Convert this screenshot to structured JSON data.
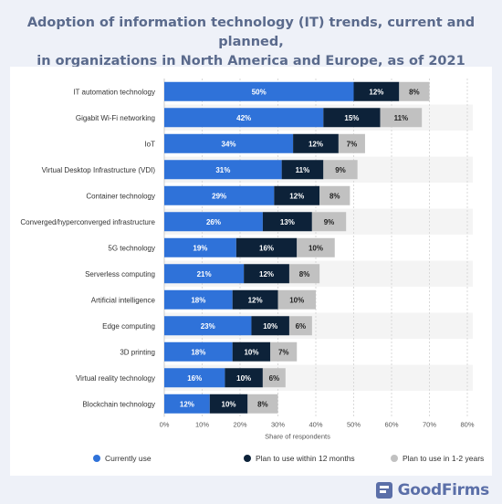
{
  "header": {
    "title_line1": "Adoption of information technology (IT) trends, current and planned,",
    "title_line2": "in organizations in North America and Europe, as of 2021"
  },
  "brand": {
    "logo_text": "GoodFirms",
    "logo_icon": "goodfirms-logo-icon"
  },
  "chart_data": {
    "type": "bar",
    "orientation": "horizontal",
    "stacked": true,
    "categories": [
      "IT automation technology",
      "Gigabit Wi-Fi networking",
      "IoT",
      "Virtual Desktop Infrastructure (VDI)",
      "Container technology",
      "Converged/hyperconverged infrastructure",
      "5G technology",
      "Serverless computing",
      "Artificial intelligence",
      "Edge computing",
      "3D printing",
      "Virtual reality technology",
      "Blockchain technology"
    ],
    "series": [
      {
        "name": "Currently use",
        "color": "#2f72d9",
        "label_color": "#ffffff",
        "values": [
          50,
          42,
          34,
          31,
          29,
          26,
          19,
          21,
          18,
          23,
          18,
          16,
          12
        ]
      },
      {
        "name": "Plan to use within 12 months",
        "color": "#0d2239",
        "label_color": "#ffffff",
        "values": [
          12,
          15,
          12,
          11,
          12,
          13,
          16,
          12,
          12,
          10,
          10,
          10,
          10
        ]
      },
      {
        "name": "Plan to use in 1-2 years",
        "color": "#c1c1c1",
        "label_color": "#222222",
        "values": [
          8,
          11,
          7,
          9,
          8,
          9,
          10,
          8,
          10,
          6,
          7,
          6,
          8
        ]
      }
    ],
    "value_suffix": "%",
    "xlabel": "Share of respondents",
    "xlim": [
      0,
      80
    ],
    "xticks": [
      "0%",
      "10%",
      "20%",
      "30%",
      "40%",
      "50%",
      "60%",
      "70%",
      "80%"
    ],
    "grid": true,
    "legend_position": "bottom"
  }
}
